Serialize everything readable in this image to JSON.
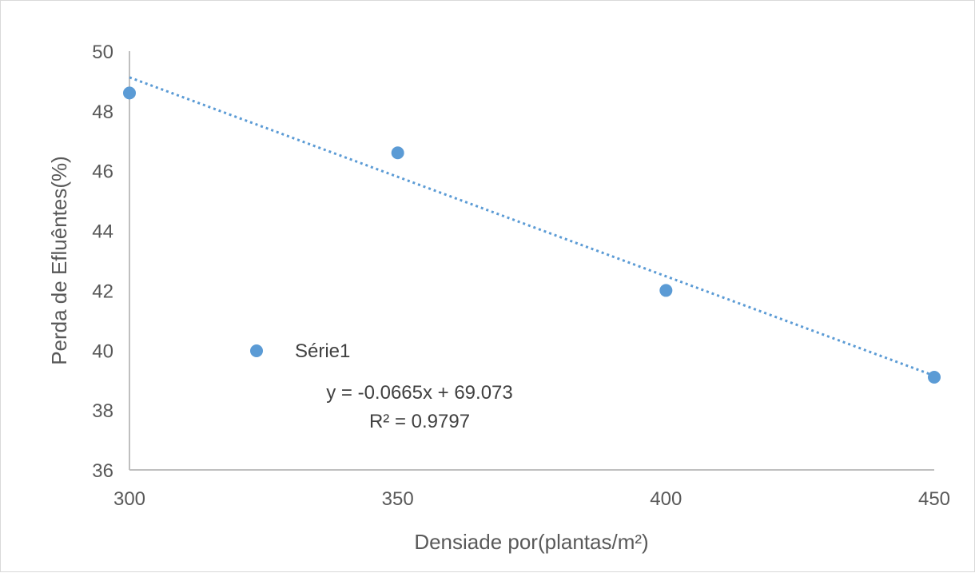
{
  "chart_data": {
    "type": "scatter",
    "title": "",
    "xlabel": "Densiade por(plantas/m²)",
    "ylabel": "Perda de Efluêntes(%)",
    "xlim": [
      300,
      450
    ],
    "ylim": [
      36,
      50
    ],
    "xticks": [
      "300",
      "350",
      "400",
      "450"
    ],
    "yticks": [
      "36",
      "38",
      "40",
      "42",
      "44",
      "46",
      "48",
      "50"
    ],
    "grid": false,
    "legend": "inside, lower-left",
    "series": [
      {
        "name": "Série1",
        "color": "#5b9bd5",
        "x": [
          300,
          350,
          400,
          450
        ],
        "y": [
          48.6,
          46.6,
          42.0,
          39.1
        ]
      }
    ],
    "trendline": {
      "type": "linear",
      "style": "dotted",
      "color": "#5b9bd5",
      "slope": -0.0665,
      "intercept": 69.073,
      "equation": "y = -0.0665x + 69.073",
      "r_squared": "R² = 0.9797"
    }
  }
}
